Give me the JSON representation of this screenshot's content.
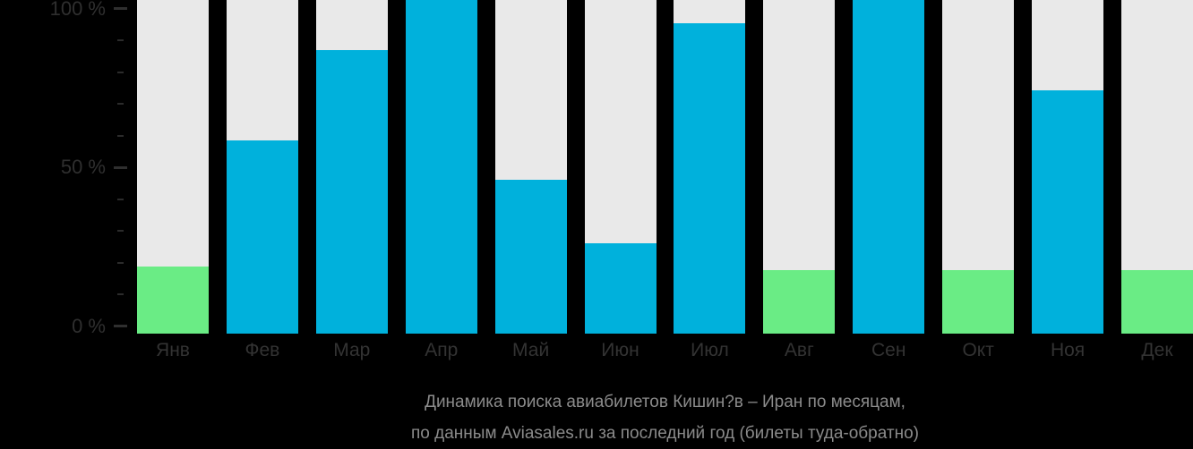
{
  "chart_data": {
    "type": "bar",
    "title": "Динамика поиска авиабилетов Кишин?в – Иран по месяцам,",
    "subtitle": "по данным Aviasales.ru за последний год (билеты туда-обратно)",
    "categories": [
      "Янв",
      "Фев",
      "Мар",
      "Апр",
      "Май",
      "Июн",
      "Июл",
      "Авг",
      "Сен",
      "Окт",
      "Ноя",
      "Дек"
    ],
    "values": [
      20,
      58,
      85,
      100,
      46,
      27,
      93,
      19,
      100,
      19,
      73,
      19
    ],
    "bar_colors": [
      "green",
      "blue",
      "blue",
      "blue",
      "blue",
      "blue",
      "blue",
      "green",
      "blue",
      "green",
      "blue",
      "green"
    ],
    "ylim": [
      0,
      100
    ],
    "ylabel": "",
    "xlabel": "",
    "grid": false,
    "legend": false,
    "major_ticks": [
      {
        "value": 0,
        "label": "0 %"
      },
      {
        "value": 50,
        "label": "50 %"
      },
      {
        "value": 100,
        "label": "100 %"
      }
    ],
    "minor_ticks": [
      10,
      20,
      30,
      40,
      60,
      70,
      80,
      90
    ]
  },
  "colors": {
    "background": "#000000",
    "track": "#e9e9e9",
    "blue": "#00b1dc",
    "green": "#6aec85",
    "axis_text": "#2f2f2f",
    "caption_text": "#8b8b8b"
  }
}
